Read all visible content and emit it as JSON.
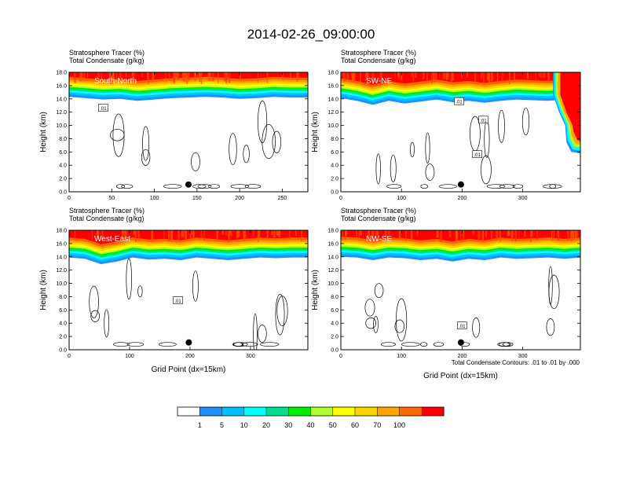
{
  "figure": {
    "title": "2014-02-26_09:00:00",
    "contour_note": "Total Condensate Contours: .01 to .01 by .000"
  },
  "colorbar": {
    "labels": [
      "1",
      "5",
      "10",
      "20",
      "30",
      "40",
      "50",
      "60",
      "70",
      "100"
    ],
    "colors": [
      "#ffffff",
      "#1e90ff",
      "#00bfff",
      "#00ffff",
      "#00e08a",
      "#00ee00",
      "#adff2f",
      "#ffff00",
      "#ffd700",
      "#ffa500",
      "#ff6a00",
      "#ff0000"
    ]
  },
  "chart_data": [
    {
      "type": "heatmap",
      "name": "South-North",
      "title_line1": "Stratosphere Tracer   (%)",
      "title_line2": "Total Condensate   (g/kg)",
      "panel_label": "South-North",
      "ylabel": "Height (km)",
      "xlabel": "",
      "xlim": [
        0,
        280
      ],
      "ylim": [
        0,
        18
      ],
      "xticks": [
        0,
        50,
        100,
        150,
        200,
        250
      ],
      "yticks": [
        0,
        2,
        4,
        6,
        8,
        10,
        12,
        14,
        16,
        18
      ],
      "tracer_front_km": [
        15.0,
        14.8,
        14.6,
        14.7,
        14.4,
        14.6,
        14.8,
        14.9,
        15.0,
        14.9,
        14.7,
        14.8,
        15.0,
        14.9,
        14.9
      ],
      "contour_labels": [
        {
          "text": ".01",
          "x": 40,
          "y": 12.6
        }
      ],
      "marker": {
        "x": 140,
        "y": 1.1
      }
    },
    {
      "type": "heatmap",
      "name": "SW-NE",
      "title_line1": "Stratosphere Tracer   (%)",
      "title_line2": "Total Condensate   (g/kg)",
      "panel_label": "SW-NE",
      "ylabel": "Height (km)",
      "xlabel": "",
      "xlim": [
        0,
        395
      ],
      "ylim": [
        0,
        18
      ],
      "xticks": [
        0,
        100,
        200,
        300
      ],
      "yticks": [
        0,
        2,
        4,
        6,
        8,
        10,
        12,
        14,
        16,
        18
      ],
      "tracer_front_km": [
        14.8,
        14.4,
        13.8,
        14.4,
        14.0,
        14.3,
        14.6,
        14.2,
        14.4,
        14.1,
        14.4,
        14.6,
        14.5,
        14.4,
        14.6,
        14.4
      ],
      "contour_labels": [
        {
          "text": ".01",
          "x": 195,
          "y": 13.6
        },
        {
          "text": ".01",
          "x": 235,
          "y": 10.8
        },
        {
          "text": ".01",
          "x": 225,
          "y": 5.6
        }
      ],
      "marker": {
        "x": 198,
        "y": 1.1
      }
    },
    {
      "type": "heatmap",
      "name": "West-East",
      "title_line1": "Stratosphere Tracer   (%)",
      "title_line2": "Total Condensate   (g/kg)",
      "panel_label": "West-East",
      "ylabel": "Height (km)",
      "xlabel": "Grid Point (dx=15km)",
      "xlim": [
        0,
        395
      ],
      "ylim": [
        0,
        18
      ],
      "xticks": [
        0,
        100,
        200,
        300
      ],
      "yticks": [
        0,
        2,
        4,
        6,
        8,
        10,
        12,
        14,
        16,
        18
      ],
      "tracer_front_km": [
        14.6,
        14.4,
        13.6,
        14.0,
        14.6,
        14.3,
        14.4,
        14.2,
        14.6,
        14.4,
        14.2,
        14.4,
        14.6,
        14.5,
        14.6,
        14.6
      ],
      "contour_labels": [
        {
          "text": ".01",
          "x": 180,
          "y": 7.4
        }
      ],
      "marker": {
        "x": 198,
        "y": 1.1
      }
    },
    {
      "type": "heatmap",
      "name": "NW-SE",
      "title_line1": "Stratosphere Tracer   (%)",
      "title_line2": "Total Condensate   (g/kg)",
      "panel_label": "NW-SE",
      "ylabel": "",
      "xlabel": "Grid Point (dx=15km)",
      "xlim": [
        0,
        395
      ],
      "ylim": [
        0,
        18
      ],
      "xticks": [
        0,
        100,
        200,
        300
      ],
      "yticks": [
        0,
        2,
        4,
        6,
        8,
        10,
        12,
        14,
        16,
        18
      ],
      "tracer_front_km": [
        14.7,
        14.6,
        14.2,
        14.6,
        14.5,
        14.2,
        14.4,
        14.0,
        14.4,
        14.2,
        14.6,
        14.4,
        14.5,
        14.6,
        14.4,
        14.6
      ],
      "contour_labels": [
        {
          "text": ".01",
          "x": 200,
          "y": 3.6
        }
      ],
      "marker": {
        "x": 198,
        "y": 1.1
      }
    }
  ]
}
